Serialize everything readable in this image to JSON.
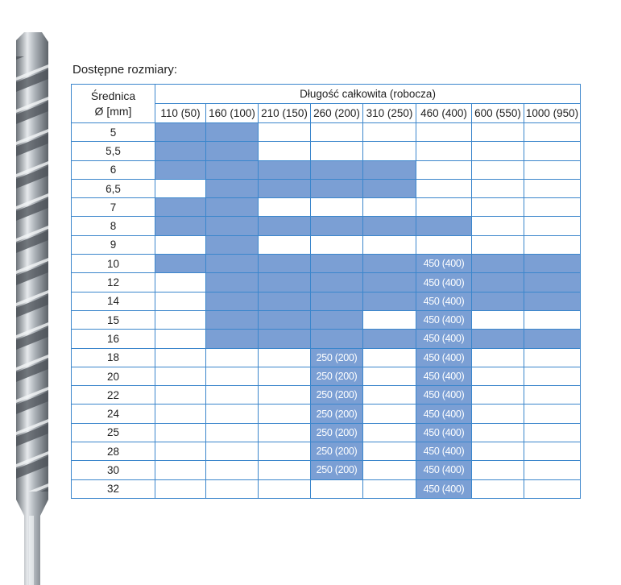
{
  "caption": "Dostępne rozmiary:",
  "table": {
    "diameter_header_line1": "Średnica",
    "diameter_header_line2": "Ø  [mm]",
    "length_header": "Długość całkowita (robocza)",
    "columns": [
      "110 (50)",
      "160 (100)",
      "210 (150)",
      "260 (200)",
      "310 (250)",
      "460 (400)",
      "600 (550)",
      "1000 (950)"
    ],
    "fill_color": "#7b9fd4",
    "border_color": "#3b86cc",
    "rows": [
      {
        "d": "5",
        "cells": [
          1,
          1,
          0,
          0,
          0,
          0,
          0,
          0
        ]
      },
      {
        "d": "5,5",
        "cells": [
          1,
          1,
          0,
          0,
          0,
          0,
          0,
          0
        ]
      },
      {
        "d": "6",
        "cells": [
          1,
          1,
          1,
          1,
          1,
          0,
          0,
          0
        ]
      },
      {
        "d": "6,5",
        "cells": [
          0,
          1,
          1,
          1,
          1,
          0,
          0,
          0
        ]
      },
      {
        "d": "7",
        "cells": [
          1,
          1,
          0,
          0,
          0,
          0,
          0,
          0
        ]
      },
      {
        "d": "8",
        "cells": [
          1,
          1,
          1,
          1,
          1,
          1,
          0,
          0
        ]
      },
      {
        "d": "9",
        "cells": [
          0,
          1,
          0,
          0,
          0,
          0,
          0,
          0
        ]
      },
      {
        "d": "10",
        "cells": [
          1,
          1,
          1,
          1,
          1,
          "450 (400)",
          1,
          1
        ]
      },
      {
        "d": "12",
        "cells": [
          0,
          1,
          1,
          1,
          1,
          "450 (400)",
          1,
          1
        ]
      },
      {
        "d": "14",
        "cells": [
          0,
          1,
          1,
          1,
          1,
          "450 (400)",
          1,
          1
        ]
      },
      {
        "d": "15",
        "cells": [
          0,
          1,
          1,
          1,
          0,
          "450 (400)",
          0,
          0
        ]
      },
      {
        "d": "16",
        "cells": [
          0,
          1,
          1,
          1,
          1,
          "450 (400)",
          1,
          1
        ]
      },
      {
        "d": "18",
        "cells": [
          0,
          0,
          0,
          "250 (200)",
          0,
          "450 (400)",
          0,
          0
        ]
      },
      {
        "d": "20",
        "cells": [
          0,
          0,
          0,
          "250 (200)",
          0,
          "450 (400)",
          0,
          0
        ]
      },
      {
        "d": "22",
        "cells": [
          0,
          0,
          0,
          "250 (200)",
          0,
          "450 (400)",
          0,
          0
        ]
      },
      {
        "d": "24",
        "cells": [
          0,
          0,
          0,
          "250 (200)",
          0,
          "450 (400)",
          0,
          0
        ]
      },
      {
        "d": "25",
        "cells": [
          0,
          0,
          0,
          "250 (200)",
          0,
          "450 (400)",
          0,
          0
        ]
      },
      {
        "d": "28",
        "cells": [
          0,
          0,
          0,
          "250 (200)",
          0,
          "450 (400)",
          0,
          0
        ]
      },
      {
        "d": "30",
        "cells": [
          0,
          0,
          0,
          "250 (200)",
          0,
          "450 (400)",
          0,
          0
        ]
      },
      {
        "d": "32",
        "cells": [
          0,
          0,
          0,
          0,
          0,
          "450 (400)",
          0,
          0
        ]
      }
    ]
  }
}
